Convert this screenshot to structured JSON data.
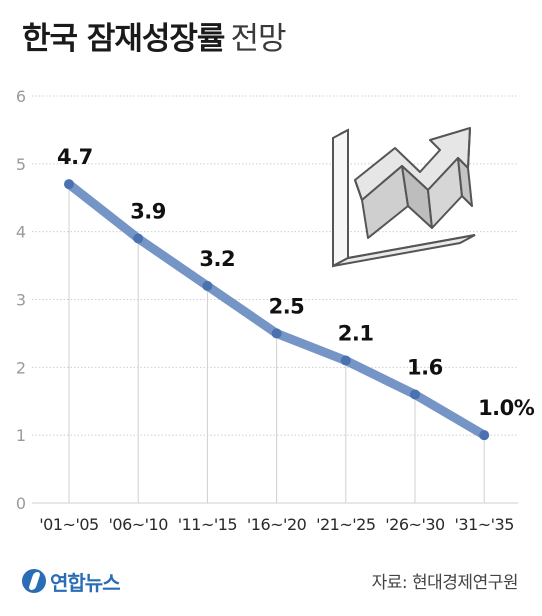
{
  "title": {
    "main": "한국 잠재성장률",
    "sub": "전망"
  },
  "chart_data": {
    "type": "line",
    "categories": [
      "'01~'05",
      "'06~'10",
      "'11~'15",
      "'16~'20",
      "'21~'25",
      "'26~'30",
      "'31~'35"
    ],
    "values": [
      4.7,
      3.9,
      3.2,
      2.5,
      2.1,
      1.6,
      1.0
    ],
    "data_labels": [
      "4.7",
      "3.9",
      "3.2",
      "2.5",
      "2.1",
      "1.6",
      "1.0%"
    ],
    "yticks": [
      "0",
      "1",
      "2",
      "3",
      "4",
      "5",
      "6"
    ],
    "ylim": [
      0,
      6
    ],
    "grid": true,
    "line_color": "#6d8fc2",
    "point_color": "#4a72b0"
  },
  "footer": {
    "logo_text": "연합뉴스",
    "source": "자료: 현대경제연구원"
  },
  "icons": {
    "decor": "declining-chart-arrow-icon",
    "logo": "yonhap-logo-icon"
  }
}
